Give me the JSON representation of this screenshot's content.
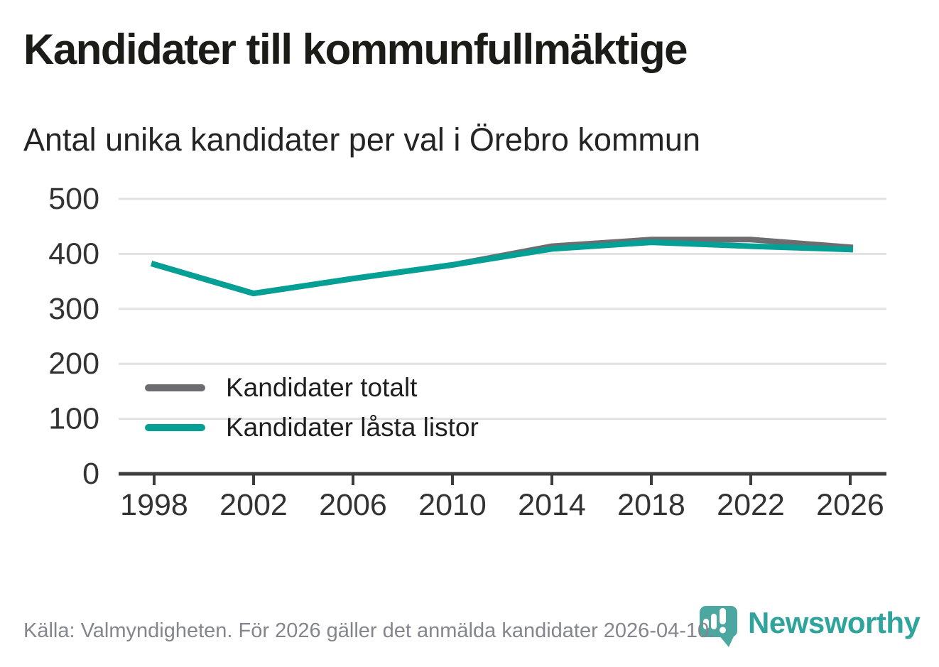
{
  "title": "Kandidater till kommunfullmäktige",
  "subtitle": "Antal unika kandidater per val i Örebro kommun",
  "footer": {
    "source_note": "Källa: Valmyndigheten. För 2026 gäller det anmälda kandidater 2026-04-10.",
    "brand_name": "Newsworthy"
  },
  "colors": {
    "total_line": "#6d6d71",
    "locked_line": "#04a096",
    "grid": "#e2e2e2",
    "axis": "#3d3d3d",
    "tick_text": "#333333",
    "footer_text": "#85858d",
    "brand_teal": "#2ea49c",
    "logo_pin": "#4ba7a0"
  },
  "chart_data": {
    "type": "line",
    "categories": [
      "1998",
      "2002",
      "2006",
      "2010",
      "2014",
      "2018",
      "2022",
      "2026"
    ],
    "series": [
      {
        "name": "Kandidater totalt",
        "color": "#6d6d71",
        "values": [
          381,
          328,
          355,
          380,
          414,
          426,
          426,
          412
        ]
      },
      {
        "name": "Kandidater låsta listor",
        "color": "#04a096",
        "values": [
          381,
          328,
          355,
          380,
          409,
          421,
          414,
          408
        ]
      }
    ],
    "title": "Kandidater till kommunfullmäktige",
    "subtitle": "Antal unika kandidater per val i Örebro kommun",
    "xlabel": "",
    "ylabel": "",
    "ylim": [
      0,
      500
    ],
    "yticks": [
      0,
      100,
      200,
      300,
      400,
      500
    ],
    "grid": true,
    "legend_position": "inside-bottom-left"
  }
}
